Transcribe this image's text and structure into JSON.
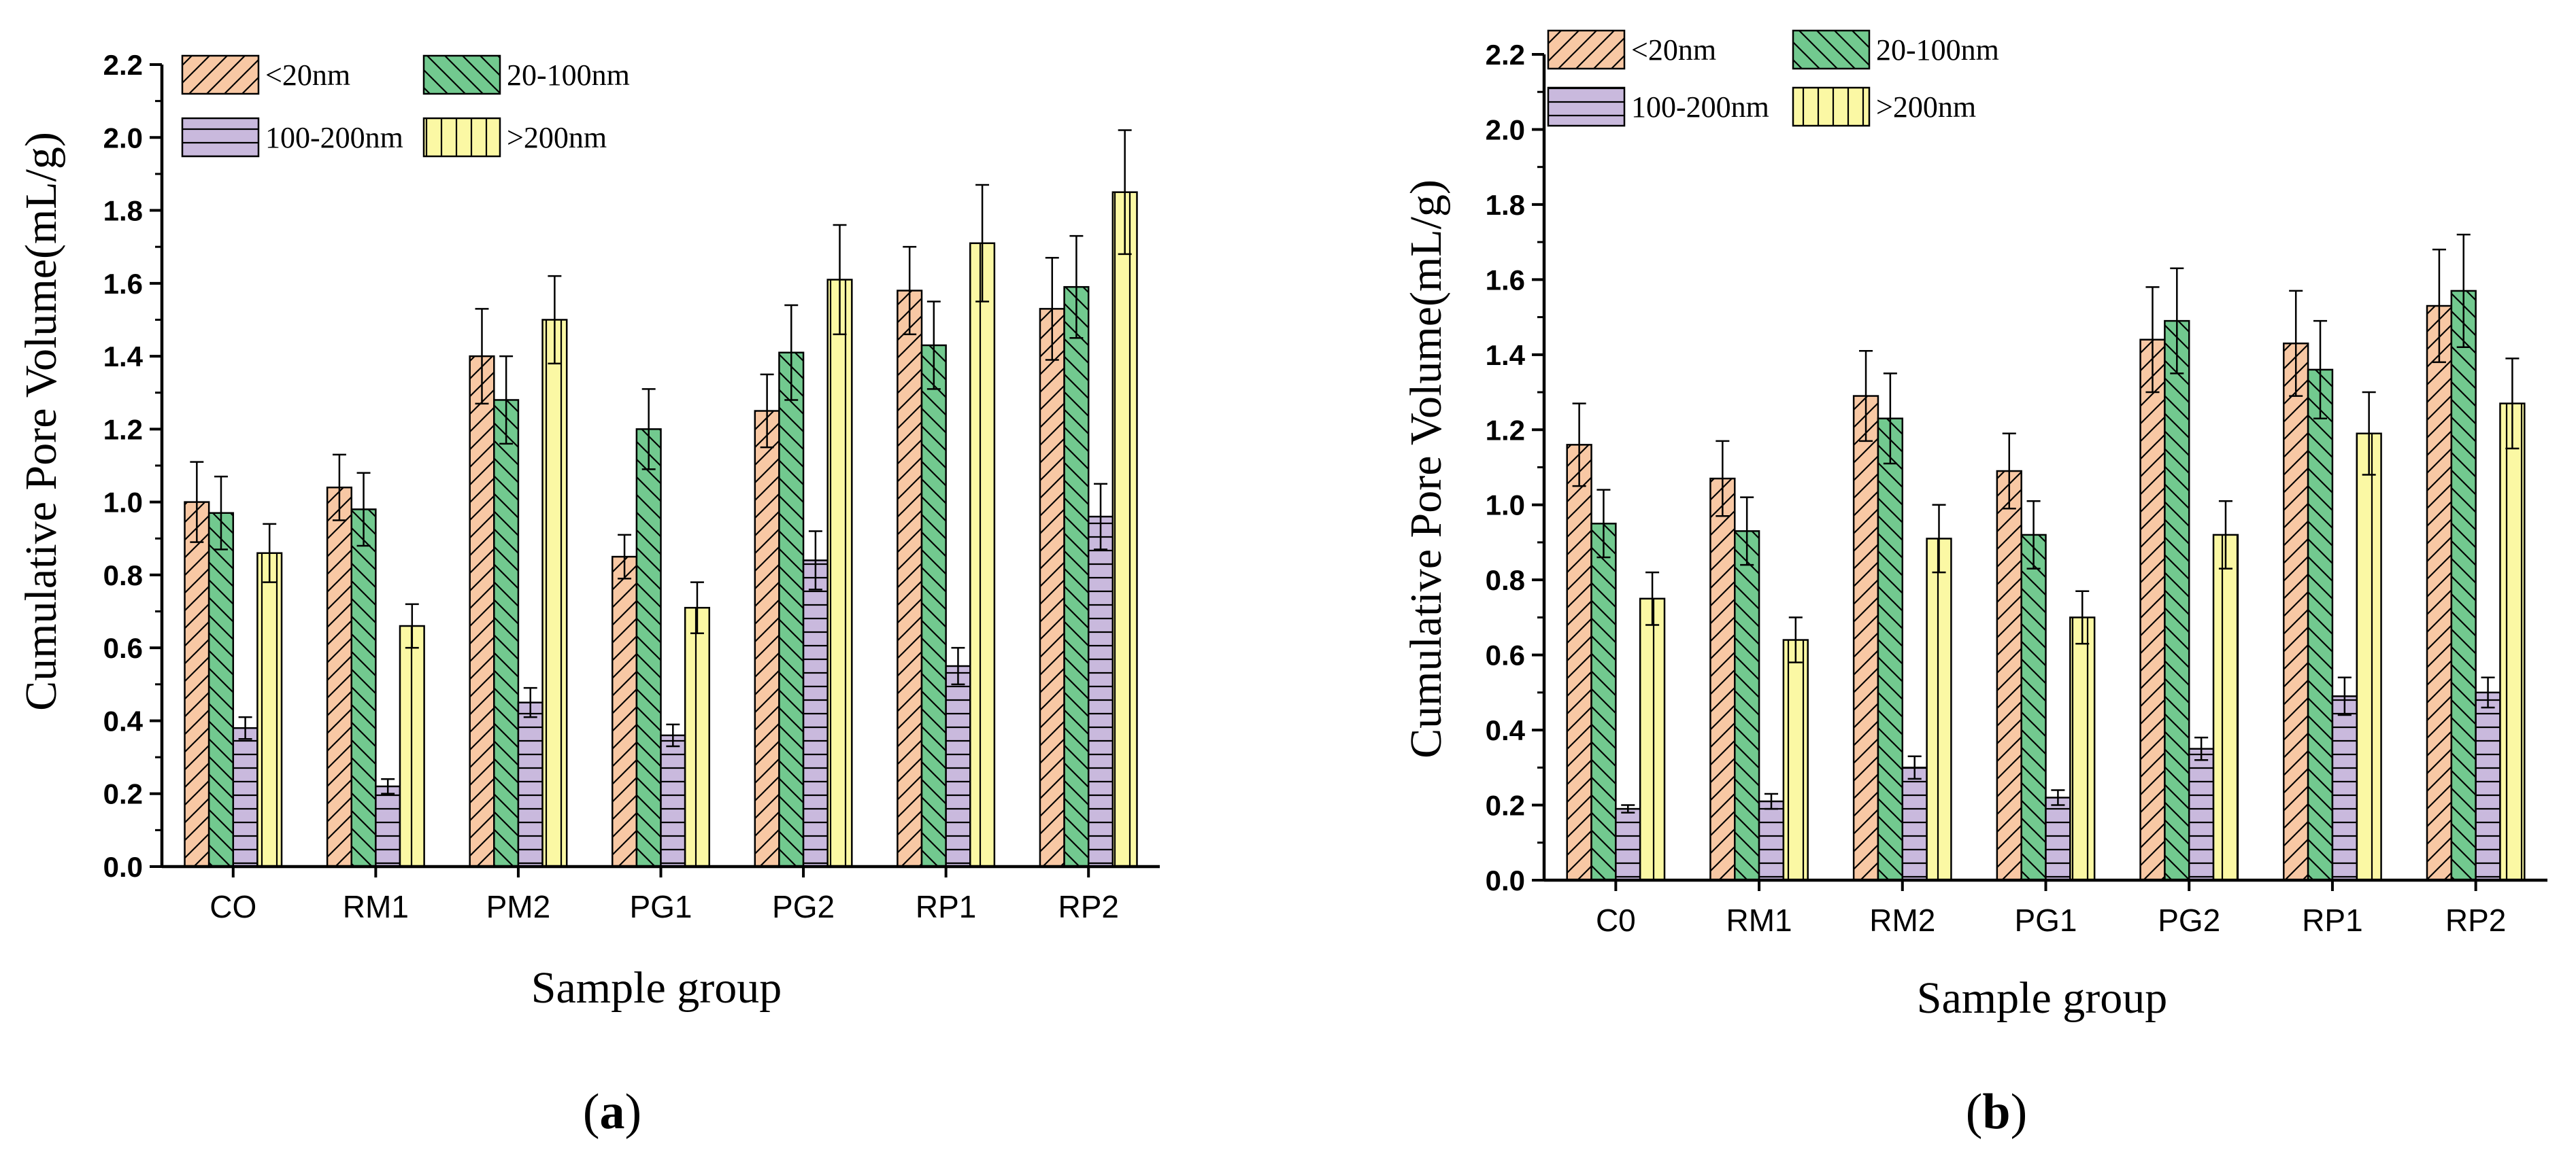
{
  "chart_data": [
    {
      "type": "bar",
      "panel_label_prefix": "(",
      "panel_label_letter": "a",
      "panel_label_suffix": ")",
      "xlabel": "Sample group",
      "ylabel": "Cumulative Pore Volume(mL/g)",
      "ylim": [
        0,
        2.2
      ],
      "yticks": [
        "0.0",
        "0.2",
        "0.4",
        "0.6",
        "0.8",
        "1.0",
        "1.2",
        "1.4",
        "1.6",
        "1.8",
        "2.0",
        "2.2"
      ],
      "categories": [
        "CO",
        "RM1",
        "PM2",
        "PG1",
        "PG2",
        "RP1",
        "RP2"
      ],
      "legend_placement": "top-left",
      "series": [
        {
          "name": "<20nm",
          "color": "#F8C8A4",
          "pattern": "diag-fwd",
          "values": [
            1.0,
            1.04,
            1.4,
            0.85,
            1.25,
            1.58,
            1.53
          ],
          "errors": [
            0.11,
            0.09,
            0.13,
            0.06,
            0.1,
            0.12,
            0.14
          ]
        },
        {
          "name": "20-100nm",
          "color": "#72C98F",
          "pattern": "diag-back",
          "values": [
            0.97,
            0.98,
            1.28,
            1.2,
            1.41,
            1.43,
            1.59
          ],
          "errors": [
            0.1,
            0.1,
            0.12,
            0.11,
            0.13,
            0.12,
            0.14
          ]
        },
        {
          "name": "100-200nm",
          "color": "#C9B9DD",
          "pattern": "horizontal",
          "values": [
            0.38,
            0.22,
            0.45,
            0.36,
            0.84,
            0.55,
            0.96
          ],
          "errors": [
            0.03,
            0.02,
            0.04,
            0.03,
            0.08,
            0.05,
            0.09
          ]
        },
        {
          "name": ">200nm",
          "color": "#FBF8A4",
          "pattern": "vertical",
          "values": [
            0.86,
            0.66,
            1.5,
            0.71,
            1.61,
            1.71,
            1.85
          ],
          "errors": [
            0.08,
            0.06,
            0.12,
            0.07,
            0.15,
            0.16,
            0.17
          ]
        }
      ]
    },
    {
      "type": "bar",
      "panel_label_prefix": "(",
      "panel_label_letter": "b",
      "panel_label_suffix": ")",
      "xlabel": "Sample group",
      "ylabel": "Cumulative Pore Volume(mL/g)",
      "ylim": [
        0,
        2.2
      ],
      "yticks": [
        "0.0",
        "0.2",
        "0.4",
        "0.6",
        "0.8",
        "1.0",
        "1.2",
        "1.4",
        "1.6",
        "1.8",
        "2.0",
        "2.2"
      ],
      "categories": [
        "C0",
        "RM1",
        "RM2",
        "PG1",
        "PG2",
        "RP1",
        "RP2"
      ],
      "legend_placement": "top-left",
      "series": [
        {
          "name": "<20nm",
          "color": "#F8C8A4",
          "pattern": "diag-fwd",
          "values": [
            1.16,
            1.07,
            1.29,
            1.09,
            1.44,
            1.43,
            1.53
          ],
          "errors": [
            0.11,
            0.1,
            0.12,
            0.1,
            0.14,
            0.14,
            0.15
          ]
        },
        {
          "name": "20-100nm",
          "color": "#72C98F",
          "pattern": "diag-back",
          "values": [
            0.95,
            0.93,
            1.23,
            0.92,
            1.49,
            1.36,
            1.57
          ],
          "errors": [
            0.09,
            0.09,
            0.12,
            0.09,
            0.14,
            0.13,
            0.15
          ]
        },
        {
          "name": "100-200nm",
          "color": "#C9B9DD",
          "pattern": "horizontal",
          "values": [
            0.19,
            0.21,
            0.3,
            0.22,
            0.35,
            0.49,
            0.5
          ],
          "errors": [
            0.01,
            0.02,
            0.03,
            0.02,
            0.03,
            0.05,
            0.04
          ]
        },
        {
          "name": ">200nm",
          "color": "#FBF8A4",
          "pattern": "vertical",
          "values": [
            0.75,
            0.64,
            0.91,
            0.7,
            0.92,
            1.19,
            1.27
          ],
          "errors": [
            0.07,
            0.06,
            0.09,
            0.07,
            0.09,
            0.11,
            0.12
          ]
        }
      ]
    }
  ]
}
